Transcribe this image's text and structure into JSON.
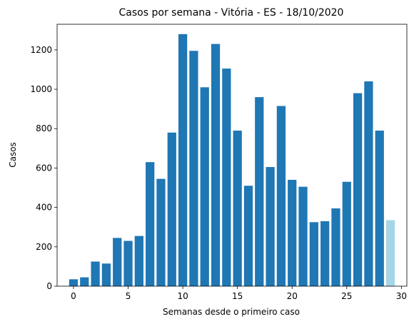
{
  "chart_data": {
    "type": "bar",
    "title": "Casos por semana - Vitória - ES - 18/10/2020",
    "xlabel": "Semanas desde o primeiro caso",
    "ylabel": "Casos",
    "xlim": [
      -1.5,
      30.5
    ],
    "ylim": [
      0,
      1330
    ],
    "x_ticks": [
      0,
      5,
      10,
      15,
      20,
      25,
      30
    ],
    "y_ticks": [
      0,
      200,
      400,
      600,
      800,
      1000,
      1200
    ],
    "grid": false,
    "x": [
      0,
      1,
      2,
      3,
      4,
      5,
      6,
      7,
      8,
      9,
      10,
      11,
      12,
      13,
      14,
      15,
      16,
      17,
      18,
      19,
      20,
      21,
      22,
      23,
      24,
      25,
      26,
      27,
      28,
      29
    ],
    "values": [
      35,
      45,
      125,
      115,
      245,
      230,
      255,
      630,
      545,
      780,
      1280,
      1195,
      1010,
      1230,
      1105,
      790,
      510,
      960,
      605,
      915,
      540,
      505,
      325,
      330,
      395,
      530,
      980,
      1040,
      790,
      335
    ],
    "colors": {
      "bar": "#1f77b4",
      "last_bar": "#a6d5e6"
    }
  }
}
